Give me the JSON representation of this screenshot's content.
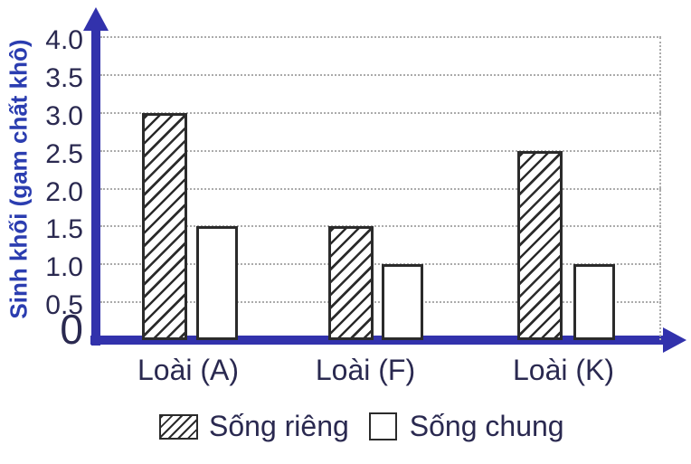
{
  "chart_data": {
    "type": "bar",
    "title": "",
    "ylabel": "Sinh khối (gam chất khô)",
    "xlabel": "",
    "ylim": [
      0,
      4.0
    ],
    "ytick_step": 0.5,
    "yticks": [
      "4.0",
      "3.5",
      "3.0",
      "2.5",
      "2.0",
      "1.5",
      "1.0",
      "0.5",
      "0"
    ],
    "categories": [
      "Loài (A)",
      "Loài (F)",
      "Loài (K)"
    ],
    "series": [
      {
        "name": "Sống riêng",
        "pattern": "diagonal-hatch",
        "values": [
          3.0,
          1.5,
          2.5
        ]
      },
      {
        "name": "Sống chung",
        "pattern": "plain-white",
        "values": [
          1.5,
          1.0,
          1.0
        ]
      }
    ],
    "grid": "horizontal dotted lines at each 0.5 step, dotted right plot border",
    "legend_position": "bottom"
  },
  "legend": {
    "items": [
      {
        "label": "Sống riêng",
        "swatch": "hatched"
      },
      {
        "label": "Sống chung",
        "swatch": "plain"
      }
    ]
  },
  "colors": {
    "axis_blue": "#3232AC",
    "ylabel_blue": "#2B3DB0",
    "text_navy": "#2A2950",
    "bar_border": "#2B2B2B",
    "grid_gray": "#ABABAB",
    "background": "#FFFFFF"
  }
}
